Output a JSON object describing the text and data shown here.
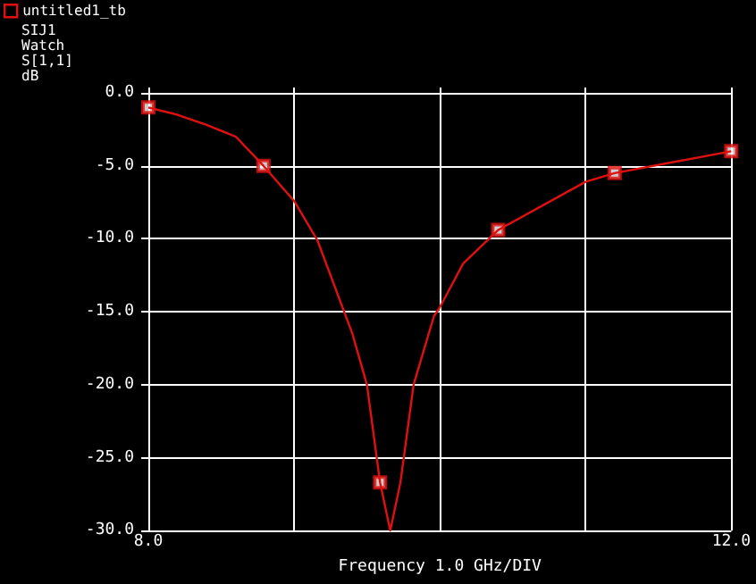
{
  "chart_data": {
    "type": "line",
    "xlabel": "Frequency 1.0 GHz/DIV",
    "annotations": [
      "SIJ1",
      "Watch",
      "S[1,1]",
      "dB"
    ],
    "xlim": [
      8.0,
      12.0
    ],
    "xticks": [
      {
        "value": 8,
        "label": "8.0"
      },
      {
        "value": 9,
        "label": null
      },
      {
        "value": 10,
        "label": null
      },
      {
        "value": 11,
        "label": null
      },
      {
        "value": 12,
        "label": "12.0"
      }
    ],
    "ylim": [
      -30,
      0
    ],
    "yticks": [
      {
        "value": -30,
        "label": "-30.0"
      },
      {
        "value": -25,
        "label": "-25.0"
      },
      {
        "value": -20,
        "label": "-20.0"
      },
      {
        "value": -15,
        "label": "-15.0"
      },
      {
        "value": -10,
        "label": "-10.0"
      },
      {
        "value": -5,
        "label": "-5.0"
      },
      {
        "value": 0,
        "label": "0.0"
      }
    ],
    "grid": true,
    "legend": "top left",
    "line_style": "solid",
    "series": [
      {
        "name": "untitled1_tb",
        "color": "#e01010",
        "marker": "none",
        "x": [
          8.0,
          8.2,
          8.4,
          8.6,
          8.79,
          9.0,
          9.16,
          9.4,
          9.5,
          9.59,
          9.66,
          9.73,
          9.82,
          9.96,
          10.0,
          10.16,
          10.4,
          11.0,
          11.2,
          12.0
        ],
        "values": [
          -1.0,
          -1.5,
          -2.2,
          -3.0,
          -5.0,
          -7.4,
          -10.1,
          -16.5,
          -20.0,
          -26.7,
          -30.0,
          -26.7,
          -20.0,
          -15.3,
          -14.7,
          -11.7,
          -9.4,
          -6.1,
          -5.5,
          -4.0
        ]
      },
      {
        "type": "scatter",
        "color": "#e01010",
        "marker": "square",
        "x": [
          8.0,
          8.79,
          9.59,
          10.4,
          11.2,
          12.0
        ],
        "values": [
          -1.0,
          -5.0,
          -26.7,
          -9.4,
          -5.5,
          -4.0
        ]
      }
    ]
  }
}
